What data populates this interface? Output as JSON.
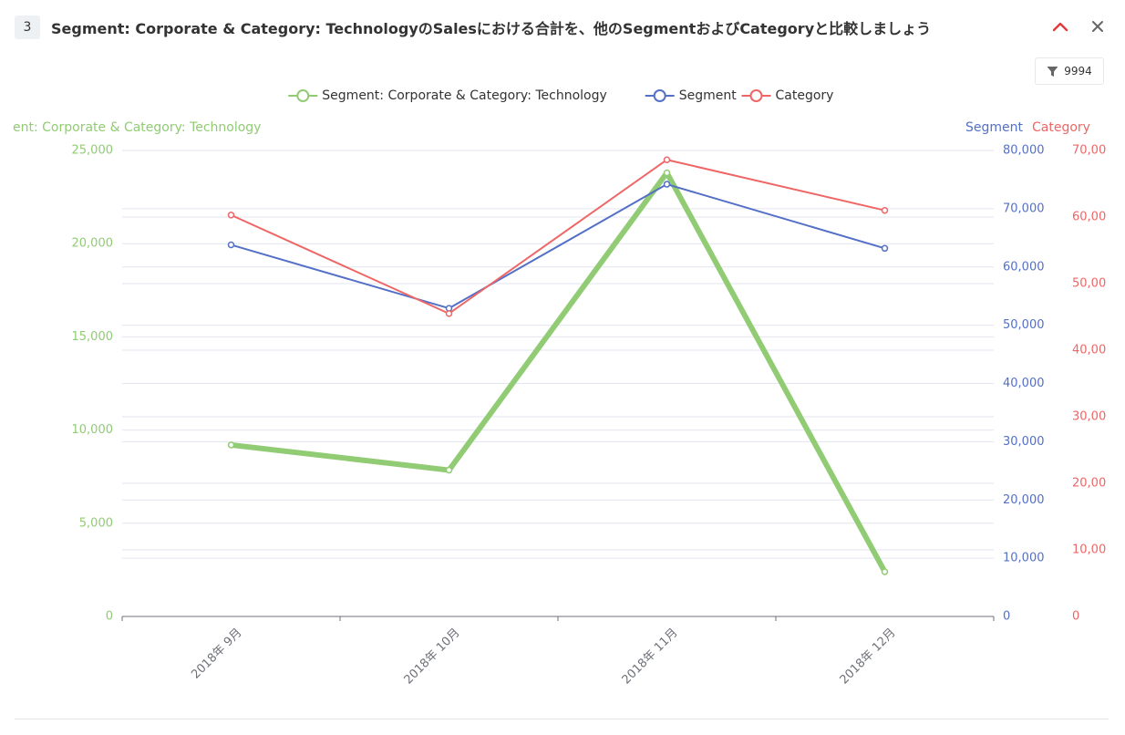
{
  "header": {
    "index_label": "3",
    "title": "Segment: Corporate & Category: TechnologyのSalesにおける合計を、他のSegmentおよびCategoryと比較しましょう",
    "filter_count": "9994",
    "collapse_icon": "chevron-up-icon",
    "close_icon": "close-icon",
    "filter_icon": "filter-icon"
  },
  "chart_data": {
    "type": "line",
    "categories": [
      "2018年 9月",
      "2018年 10月",
      "2018年 11月",
      "2018年 12月"
    ],
    "legend_position": "top-center",
    "grid": true,
    "series": [
      {
        "name": "Segment: Corporate & Category: Technology",
        "color": "#91cc75",
        "axis": "left",
        "values": [
          9200,
          7850,
          23800,
          2400
        ]
      },
      {
        "name": "Segment",
        "color": "#5470c6",
        "axis": "right1",
        "values": [
          63800,
          52900,
          74200,
          63200
        ]
      },
      {
        "name": "Category",
        "color": "#ee6666",
        "axis": "right2",
        "values": [
          60300,
          45500,
          68600,
          61000
        ]
      }
    ],
    "axes": {
      "left": {
        "label": "ent: Corporate & Category: Technology",
        "min": 0,
        "max": 25000,
        "ticks": [
          "0",
          "5,000",
          "10,000",
          "15,000",
          "20,000",
          "25,000"
        ]
      },
      "right1": {
        "label": "Segment",
        "min": 0,
        "max": 80000,
        "ticks": [
          "0",
          "10,000",
          "20,000",
          "30,000",
          "40,000",
          "50,000",
          "60,000",
          "70,000",
          "80,000"
        ]
      },
      "right2": {
        "label": "Category",
        "min": 0,
        "max": 70000,
        "ticks": [
          "0",
          "10,00",
          "20,00",
          "30,00",
          "40,00",
          "50,00",
          "60,00",
          "70,00"
        ]
      }
    }
  }
}
